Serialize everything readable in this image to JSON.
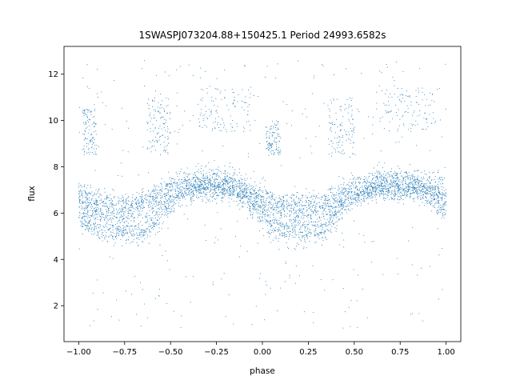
{
  "chart_data": {
    "type": "scatter",
    "title": "1SWASPJ073204.88+150425.1 Period 24993.6582s",
    "xlabel": "phase",
    "ylabel": "flux",
    "xlim": [
      -1.08,
      1.08
    ],
    "ylim": [
      0.45,
      13.2
    ],
    "x_ticks": [
      -1.0,
      -0.75,
      -0.5,
      -0.25,
      0.0,
      0.25,
      0.5,
      0.75,
      1.0
    ],
    "x_tick_labels": [
      "−1.00",
      "−0.75",
      "−0.50",
      "−0.25",
      "0.00",
      "0.25",
      "0.50",
      "0.75",
      "1.00"
    ],
    "y_ticks": [
      2,
      4,
      6,
      8,
      10,
      12
    ],
    "y_tick_labels": [
      "2",
      "4",
      "6",
      "8",
      "10",
      "12"
    ],
    "grid": false,
    "legend": "none",
    "marker_color": "#1f77b4",
    "series": [
      {
        "phase": [
          -1.0,
          -0.95,
          -0.9,
          -0.85,
          -0.8,
          -0.75,
          -0.7,
          -0.65,
          -0.6,
          -0.55,
          -0.5,
          -0.45,
          -0.4,
          -0.35,
          -0.3,
          -0.25,
          -0.2,
          -0.15,
          -0.1,
          -0.05,
          0.0,
          0.05,
          0.1,
          0.15,
          0.2,
          0.25,
          0.3,
          0.35,
          0.4,
          0.45,
          0.5,
          0.55,
          0.6,
          0.65,
          0.7,
          0.75,
          0.8,
          0.85,
          0.9,
          0.95,
          1.0
        ],
        "upper_band_flux": [
          6.8,
          6.6,
          6.4,
          6.3,
          6.2,
          6.2,
          6.3,
          6.4,
          6.6,
          6.8,
          7.0,
          7.1,
          7.2,
          7.3,
          7.3,
          7.3,
          7.3,
          7.2,
          7.0,
          6.8,
          6.6,
          6.4,
          6.3,
          6.2,
          6.2,
          6.3,
          6.3,
          6.4,
          6.6,
          6.8,
          7.0,
          7.1,
          7.2,
          7.3,
          7.3,
          7.3,
          7.3,
          7.2,
          7.1,
          7.0,
          6.8
        ],
        "lower_band_flux": [
          6.0,
          5.6,
          5.4,
          5.3,
          5.2,
          5.2,
          5.2,
          5.3,
          5.5,
          5.9,
          6.4,
          6.8,
          7.0,
          7.1,
          7.2,
          7.2,
          7.1,
          7.0,
          6.8,
          6.3,
          5.8,
          5.5,
          5.3,
          5.2,
          5.2,
          5.2,
          5.3,
          5.5,
          5.9,
          6.4,
          6.7,
          6.9,
          7.0,
          7.1,
          7.1,
          7.1,
          7.1,
          7.0,
          6.8,
          6.5,
          6.0
        ],
        "outlier_clusters": [
          {
            "phase_range": [
              -0.98,
              -0.9
            ],
            "flux_range": [
              8.5,
              10.5
            ]
          },
          {
            "phase_range": [
              -0.63,
              -0.5
            ],
            "flux_range": [
              8.5,
              11.0
            ]
          },
          {
            "phase_range": [
              -0.35,
              -0.05
            ],
            "flux_range": [
              9.5,
              11.5
            ]
          },
          {
            "phase_range": [
              0.02,
              0.1
            ],
            "flux_range": [
              8.5,
              10.0
            ]
          },
          {
            "phase_range": [
              0.36,
              0.5
            ],
            "flux_range": [
              8.5,
              11.0
            ]
          },
          {
            "phase_range": [
              0.62,
              0.95
            ],
            "flux_range": [
              9.5,
              11.5
            ]
          }
        ],
        "scatter_flux_range": [
          1.0,
          12.6
        ]
      }
    ]
  }
}
